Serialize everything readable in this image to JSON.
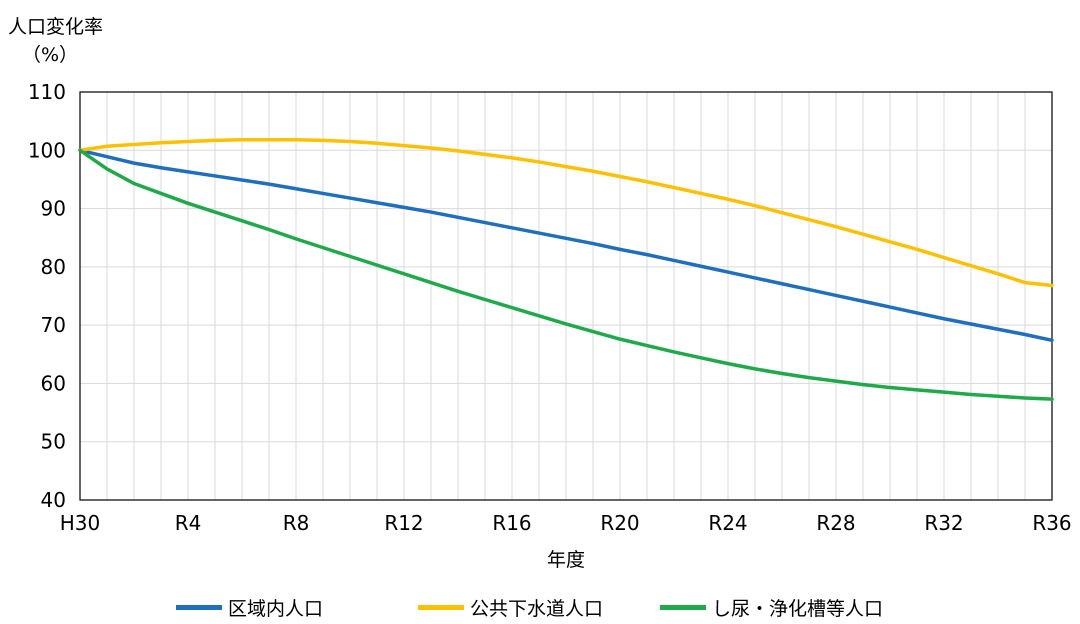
{
  "chart_data": {
    "type": "line",
    "ylabel": "人口変化率",
    "yunit": "（%）",
    "xlabel": "年度",
    "ylim": [
      40,
      110
    ],
    "yticks": [
      40,
      50,
      60,
      70,
      80,
      90,
      100,
      110
    ],
    "categories": [
      "H30",
      "R1",
      "R2",
      "R3",
      "R4",
      "R5",
      "R6",
      "R7",
      "R8",
      "R9",
      "R10",
      "R11",
      "R12",
      "R13",
      "R14",
      "R15",
      "R16",
      "R17",
      "R18",
      "R19",
      "R20",
      "R21",
      "R22",
      "R23",
      "R24",
      "R25",
      "R26",
      "R27",
      "R28",
      "R29",
      "R30",
      "R31",
      "R32",
      "R33",
      "R34",
      "R35",
      "R36"
    ],
    "xtick_labels": [
      "H30",
      "R4",
      "R8",
      "R12",
      "R16",
      "R20",
      "R24",
      "R28",
      "R32",
      "R36"
    ],
    "xtick_indices": [
      0,
      4,
      8,
      12,
      16,
      20,
      24,
      28,
      32,
      36
    ],
    "grid": true,
    "legend_position": "bottom",
    "series": [
      {
        "name": "区域内人口",
        "color": "#1f6fbf",
        "values": [
          100,
          98.9,
          97.8,
          97.0,
          96.3,
          95.6,
          94.9,
          94.2,
          93.4,
          92.6,
          91.8,
          91.0,
          90.2,
          89.4,
          88.5,
          87.6,
          86.7,
          85.8,
          84.9,
          84.0,
          83.0,
          82.1,
          81.1,
          80.1,
          79.1,
          78.1,
          77.1,
          76.1,
          75.1,
          74.1,
          73.1,
          72.1,
          71.1,
          70.2,
          69.3,
          68.4,
          67.4
        ]
      },
      {
        "name": "公共下水道人口",
        "color": "#ffc000",
        "values": [
          100,
          100.7,
          101.0,
          101.3,
          101.5,
          101.7,
          101.8,
          101.8,
          101.8,
          101.7,
          101.5,
          101.2,
          100.8,
          100.4,
          99.9,
          99.3,
          98.7,
          98.0,
          97.2,
          96.4,
          95.5,
          94.6,
          93.6,
          92.6,
          91.6,
          90.5,
          89.3,
          88.1,
          86.9,
          85.6,
          84.3,
          83.0,
          81.6,
          80.2,
          78.8,
          77.3,
          76.8
        ]
      },
      {
        "name": "し尿・浄化槽等人口",
        "color": "#1faa4a",
        "values": [
          100,
          96.8,
          94.3,
          92.6,
          90.9,
          89.4,
          87.9,
          86.4,
          84.8,
          83.3,
          81.8,
          80.3,
          78.8,
          77.3,
          75.8,
          74.4,
          73.0,
          71.6,
          70.2,
          68.9,
          67.6,
          66.5,
          65.4,
          64.4,
          63.4,
          62.5,
          61.7,
          61.0,
          60.4,
          59.8,
          59.3,
          58.9,
          58.5,
          58.1,
          57.8,
          57.5,
          57.3
        ]
      }
    ]
  }
}
